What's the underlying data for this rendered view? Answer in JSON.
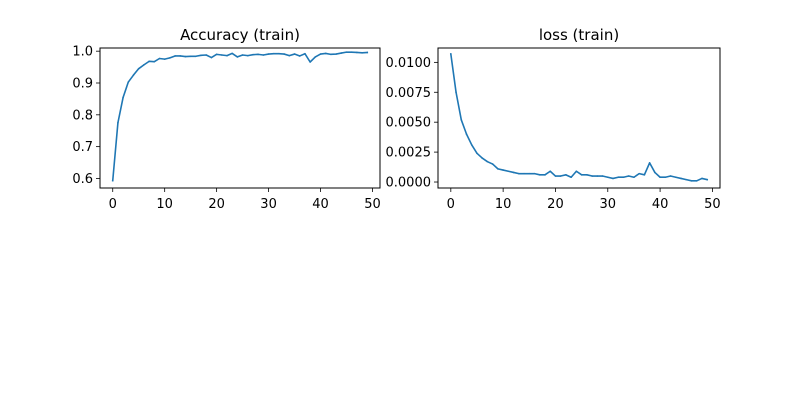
{
  "chart_data": [
    {
      "type": "line",
      "title": "Accuracy (train)",
      "xlabel": "",
      "ylabel": "",
      "xlim": [
        -2.45,
        51.45
      ],
      "ylim": [
        0.57,
        1.01
      ],
      "xticks": [
        0,
        10,
        20,
        30,
        40,
        50
      ],
      "xtick_labels": [
        "0",
        "10",
        "20",
        "30",
        "40",
        "50"
      ],
      "yticks": [
        0.6,
        0.7,
        0.8,
        0.9,
        1.0
      ],
      "ytick_labels": [
        "0.6",
        "0.7",
        "0.8",
        "0.9",
        "1.0"
      ],
      "grid": false,
      "color": "#1f77b4",
      "series": [
        {
          "x": [
            0,
            1,
            2,
            3,
            4,
            5,
            6,
            7,
            8,
            9,
            10,
            11,
            12,
            13,
            14,
            15,
            16,
            17,
            18,
            19,
            20,
            21,
            22,
            23,
            24,
            25,
            26,
            27,
            28,
            29,
            30,
            31,
            32,
            33,
            34,
            35,
            36,
            37,
            38,
            39,
            40,
            41,
            42,
            43,
            44,
            45,
            46,
            47,
            48,
            49
          ],
          "values": [
            0.593,
            0.775,
            0.855,
            0.903,
            0.925,
            0.945,
            0.957,
            0.968,
            0.967,
            0.977,
            0.975,
            0.979,
            0.985,
            0.985,
            0.983,
            0.984,
            0.984,
            0.987,
            0.988,
            0.98,
            0.99,
            0.988,
            0.986,
            0.993,
            0.982,
            0.988,
            0.986,
            0.989,
            0.99,
            0.988,
            0.991,
            0.992,
            0.992,
            0.991,
            0.986,
            0.991,
            0.985,
            0.992,
            0.966,
            0.982,
            0.991,
            0.993,
            0.99,
            0.991,
            0.994,
            0.997,
            0.997,
            0.996,
            0.995,
            0.996
          ]
        }
      ]
    },
    {
      "type": "line",
      "title": "loss (train)",
      "xlabel": "",
      "ylabel": "",
      "xlim": [
        -2.45,
        51.45
      ],
      "ylim": [
        -0.0005,
        0.0112
      ],
      "xticks": [
        0,
        10,
        20,
        30,
        40,
        50
      ],
      "xtick_labels": [
        "0",
        "10",
        "20",
        "30",
        "40",
        "50"
      ],
      "yticks": [
        0,
        0.0025,
        0.005,
        0.0075,
        0.01
      ],
      "ytick_labels": [
        "0.0000",
        "0.0025",
        "0.0050",
        "0.0075",
        "0.0100"
      ],
      "grid": false,
      "color": "#1f77b4",
      "series": [
        {
          "x": [
            0,
            1,
            2,
            3,
            4,
            5,
            6,
            7,
            8,
            9,
            10,
            11,
            12,
            13,
            14,
            15,
            16,
            17,
            18,
            19,
            20,
            21,
            22,
            23,
            24,
            25,
            26,
            27,
            28,
            29,
            30,
            31,
            32,
            33,
            34,
            35,
            36,
            37,
            38,
            39,
            40,
            41,
            42,
            43,
            44,
            45,
            46,
            47,
            48,
            49
          ],
          "values": [
            0.0107,
            0.0075,
            0.0052,
            0.004,
            0.0031,
            0.0024,
            0.002,
            0.0017,
            0.0015,
            0.0011,
            0.001,
            0.0009,
            0.0008,
            0.0007,
            0.0007,
            0.0007,
            0.0007,
            0.0006,
            0.0006,
            0.0009,
            0.0005,
            0.0005,
            0.0006,
            0.0004,
            0.0009,
            0.0006,
            0.0006,
            0.0005,
            0.0005,
            0.0005,
            0.0004,
            0.0003,
            0.0004,
            0.0004,
            0.0005,
            0.0004,
            0.0007,
            0.0006,
            0.0016,
            0.0008,
            0.0004,
            0.0004,
            0.0005,
            0.0004,
            0.0003,
            0.0002,
            0.0001,
            0.0001,
            0.0003,
            0.0002
          ]
        }
      ]
    }
  ]
}
